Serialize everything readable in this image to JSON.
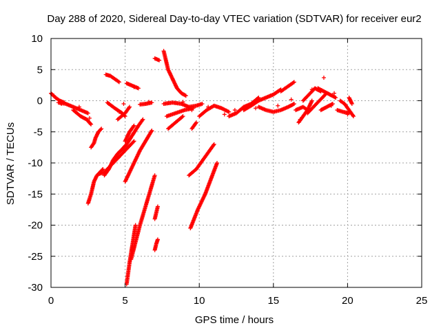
{
  "chart_data": {
    "type": "scatter",
    "title": "Day 288 of 2020, Sidereal Day-to-day VTEC variation (SDTVAR) for receiver eur2",
    "xlabel": "GPS time / hours",
    "ylabel": "SDTVAR / TECUs",
    "xlim": [
      0,
      25
    ],
    "ylim": [
      -30,
      10
    ],
    "xticks": [
      0,
      5,
      10,
      15,
      20,
      25
    ],
    "yticks": [
      -30,
      -25,
      -20,
      -15,
      -10,
      -5,
      0,
      5,
      10
    ],
    "grid": true,
    "marker": "plus",
    "color": "#ff0000",
    "segments": [
      {
        "x": [
          0.0,
          0.3,
          0.6,
          0.9
        ],
        "y": [
          1.2,
          0.5,
          0.0,
          -0.3
        ]
      },
      {
        "x": [
          0.5,
          1.0,
          1.5,
          2.0,
          2.5
        ],
        "y": [
          -0.3,
          -0.5,
          -1.0,
          -1.5,
          -2.0
        ]
      },
      {
        "x": [
          1.5,
          2.0,
          2.4,
          2.7
        ],
        "y": [
          -1.5,
          -2.5,
          -3.0,
          -3.8
        ]
      },
      {
        "x": [
          2.5,
          2.7,
          2.9,
          3.1,
          3.3,
          3.5
        ],
        "y": [
          -16.5,
          -15.0,
          -13.0,
          -12.0,
          -11.5,
          -11.0
        ]
      },
      {
        "x": [
          2.7,
          2.9,
          3.0,
          3.2,
          3.4
        ],
        "y": [
          -7.5,
          -6.8,
          -6.0,
          -5.0,
          -4.5
        ]
      },
      {
        "x": [
          3.2,
          3.6,
          4.0,
          4.4,
          4.8,
          5.2,
          5.6
        ],
        "y": [
          -11.8,
          -11.5,
          -10.5,
          -9.5,
          -8.5,
          -7.5,
          -6.5
        ]
      },
      {
        "x": [
          3.6,
          3.9,
          4.2,
          4.5,
          4.8,
          5.1,
          5.5,
          5.9,
          6.2
        ],
        "y": [
          -12.0,
          -11.0,
          -9.5,
          -8.5,
          -7.8,
          -7.0,
          -5.5,
          -4.0,
          -3.0
        ]
      },
      {
        "x": [
          3.7,
          4.0,
          4.3,
          4.6
        ],
        "y": [
          4.2,
          4.0,
          3.5,
          3.0
        ]
      },
      {
        "x": [
          3.8,
          4.3,
          4.8,
          5.0
        ],
        "y": [
          -0.3,
          -1.2,
          -2.0,
          -2.5
        ]
      },
      {
        "x": [
          4.5,
          5.0,
          5.3
        ],
        "y": [
          -3.0,
          -2.0,
          -1.0
        ]
      },
      {
        "x": [
          5.0,
          5.5,
          6.0,
          6.5,
          6.8
        ],
        "y": [
          -13.0,
          -10.5,
          -8.0,
          -6.0,
          -4.8
        ]
      },
      {
        "x": [
          5.0,
          5.3,
          5.6
        ],
        "y": [
          -6.5,
          -5.0,
          -4.0
        ]
      },
      {
        "x": [
          5.1,
          5.3,
          5.5,
          5.7
        ],
        "y": [
          -29.5,
          -26.0,
          -23.0,
          -20.0
        ]
      },
      {
        "x": [
          5.1,
          5.4,
          5.9
        ],
        "y": [
          2.8,
          2.5,
          2.0
        ]
      },
      {
        "x": [
          5.4,
          6.0,
          6.5,
          7.0
        ],
        "y": [
          -25.5,
          -20.0,
          -16.0,
          -12.0
        ]
      },
      {
        "x": [
          6.0,
          6.4,
          6.8
        ],
        "y": [
          -0.6,
          -0.5,
          -0.3
        ]
      },
      {
        "x": [
          7.0,
          7.1,
          7.2
        ],
        "y": [
          -24.0,
          -23.0,
          -22.3
        ]
      },
      {
        "x": [
          7.0,
          7.1,
          7.2
        ],
        "y": [
          -19.0,
          -18.0,
          -17.0
        ]
      },
      {
        "x": [
          7.0,
          7.3
        ],
        "y": [
          6.8,
          6.5
        ]
      },
      {
        "x": [
          7.6,
          7.9,
          8.2,
          8.5,
          8.8,
          9.1
        ],
        "y": [
          8.0,
          5.0,
          3.5,
          2.0,
          1.2,
          0.8
        ]
      },
      {
        "x": [
          7.6,
          8.2,
          8.8,
          9.3,
          9.8,
          10.2
        ],
        "y": [
          -0.5,
          -0.3,
          -0.5,
          -1.0,
          -0.8,
          -0.5
        ]
      },
      {
        "x": [
          7.8,
          8.4,
          9.0,
          9.6
        ],
        "y": [
          -2.5,
          -2.0,
          -1.5,
          -1.2
        ]
      },
      {
        "x": [
          7.9,
          8.4,
          8.9
        ],
        "y": [
          -4.5,
          -3.5,
          -2.5
        ]
      },
      {
        "x": [
          9.3,
          9.8,
          10.4,
          11.0
        ],
        "y": [
          -12.0,
          -11.0,
          -9.0,
          -7.0
        ]
      },
      {
        "x": [
          9.4,
          9.9,
          10.4,
          10.8,
          11.2
        ],
        "y": [
          -20.5,
          -17.5,
          -15.0,
          -12.5,
          -10.0
        ]
      },
      {
        "x": [
          9.5,
          9.8
        ],
        "y": [
          -4.5,
          -3.5
        ]
      },
      {
        "x": [
          10.0,
          10.5,
          11.0,
          11.5,
          12.0
        ],
        "y": [
          -2.5,
          -1.5,
          -0.8,
          -1.2,
          -1.8
        ]
      },
      {
        "x": [
          12.0,
          12.5,
          13.0,
          13.5,
          14.0
        ],
        "y": [
          -2.5,
          -2.0,
          -1.0,
          -0.5,
          0.5
        ]
      },
      {
        "x": [
          13.0,
          13.5,
          14.0,
          14.5,
          15.0,
          15.5
        ],
        "y": [
          -1.5,
          -0.8,
          0.0,
          0.5,
          1.0,
          1.8
        ]
      },
      {
        "x": [
          14.0,
          14.5,
          15.0,
          15.5,
          16.0,
          16.4
        ],
        "y": [
          -1.0,
          -1.5,
          -1.8,
          -1.5,
          -1.0,
          -0.5
        ]
      },
      {
        "x": [
          15.5,
          15.8,
          16.1,
          16.4
        ],
        "y": [
          1.5,
          2.0,
          2.5,
          3.0
        ]
      },
      {
        "x": [
          16.5,
          17.0,
          17.3
        ],
        "y": [
          -1.5,
          -1.0,
          -1.5
        ]
      },
      {
        "x": [
          16.7,
          17.0,
          17.3,
          17.6
        ],
        "y": [
          -3.5,
          -2.5,
          -1.5,
          0.0
        ]
      },
      {
        "x": [
          17.0,
          17.4,
          17.8,
          18.2
        ],
        "y": [
          0.0,
          1.0,
          2.0,
          1.5
        ]
      },
      {
        "x": [
          17.3,
          17.7,
          18.1,
          18.5
        ],
        "y": [
          -2.0,
          -1.0,
          0.0,
          1.0
        ]
      },
      {
        "x": [
          18.0,
          18.4,
          18.8,
          19.2
        ],
        "y": [
          2.0,
          1.5,
          1.0,
          0.5
        ]
      },
      {
        "x": [
          18.2,
          18.6,
          19.0
        ],
        "y": [
          -1.5,
          -1.0,
          -0.5
        ]
      },
      {
        "x": [
          19.5,
          19.8,
          20.1,
          20.4
        ],
        "y": [
          0.0,
          -0.5,
          -1.5,
          -2.5
        ]
      },
      {
        "x": [
          19.3,
          19.7,
          20.1
        ],
        "y": [
          -1.5,
          -1.8,
          -2.0
        ]
      },
      {
        "x": [
          20.1,
          20.3
        ],
        "y": [
          0.5,
          -0.5
        ]
      }
    ],
    "scatter_points": [
      {
        "x": 3.9,
        "y": -0.5
      },
      {
        "x": 4.6,
        "y": -1.8
      },
      {
        "x": 5.6,
        "y": 2.2
      },
      {
        "x": 8.9,
        "y": -0.2
      },
      {
        "x": 11.7,
        "y": -2.2
      },
      {
        "x": 13.8,
        "y": -1.2
      },
      {
        "x": 14.8,
        "y": 0.8
      },
      {
        "x": 15.3,
        "y": -0.8
      },
      {
        "x": 16.2,
        "y": 0.2
      },
      {
        "x": 16.8,
        "y": -3.0
      },
      {
        "x": 17.6,
        "y": 1.8
      },
      {
        "x": 18.4,
        "y": 3.7
      },
      {
        "x": 18.9,
        "y": -0.8
      },
      {
        "x": 19.1,
        "y": 1.2
      },
      {
        "x": 20.0,
        "y": -2.2
      },
      {
        "x": 0.2,
        "y": 0.8
      },
      {
        "x": 0.7,
        "y": -0.5
      },
      {
        "x": 1.9,
        "y": -1.0
      },
      {
        "x": 2.6,
        "y": -2.8
      },
      {
        "x": 4.9,
        "y": -0.5
      },
      {
        "x": 6.6,
        "y": -0.2
      },
      {
        "x": 9.5,
        "y": -1.5
      },
      {
        "x": 10.6,
        "y": -1.0
      },
      {
        "x": 12.4,
        "y": -1.5
      }
    ]
  }
}
